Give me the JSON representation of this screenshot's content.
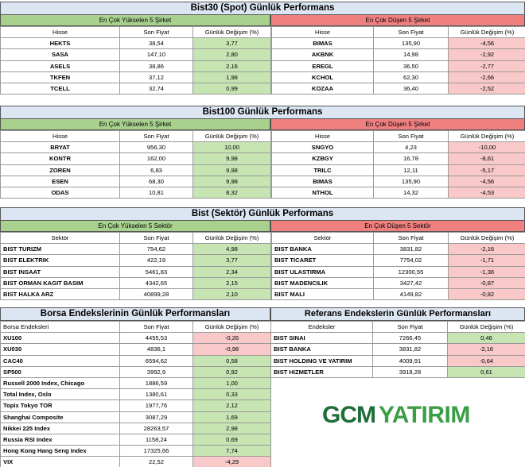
{
  "bist30": {
    "title": "Bist30 (Spot) Günlük Performans",
    "up_title": "En Çok Yükselen 5 Şirket",
    "down_title": "En Çok Düşen 5 Şirket",
    "headers": [
      "Hisse",
      "Son Fiyat",
      "Günlük Değişim (%)"
    ],
    "up": [
      [
        "HEKTS",
        "38,54",
        "3,77"
      ],
      [
        "SASA",
        "147,10",
        "2,80"
      ],
      [
        "ASELS",
        "38,86",
        "2,16"
      ],
      [
        "TKFEN",
        "37,12",
        "1,98"
      ],
      [
        "TCELL",
        "32,74",
        "0,99"
      ]
    ],
    "down": [
      [
        "BIMAS",
        "135,90",
        "-4,56"
      ],
      [
        "AKBNK",
        "14,98",
        "-2,92"
      ],
      [
        "EREGL",
        "36,50",
        "-2,77"
      ],
      [
        "KCHOL",
        "62,30",
        "-2,66"
      ],
      [
        "KOZAA",
        "36,40",
        "-2,52"
      ]
    ]
  },
  "bist100": {
    "title": "Bist100 Günlük Performans",
    "up_title": "En Çok Yükselen 5 Şirket",
    "down_title": "En Çok Düşen 5 Şirket",
    "headers": [
      "Hisse",
      "Son Fiyat",
      "Günlük Değişim (%)"
    ],
    "up": [
      [
        "BRYAT",
        "956,30",
        "10,00"
      ],
      [
        "KONTR",
        "162,00",
        "9,98"
      ],
      [
        "ZOREN",
        "6,83",
        "9,98"
      ],
      [
        "ESEN",
        "68,30",
        "9,98"
      ],
      [
        "ODAS",
        "10,81",
        "8,32"
      ]
    ],
    "down": [
      [
        "SNGYO",
        "4,23",
        "-10,00"
      ],
      [
        "KZBGY",
        "16,78",
        "-8,61"
      ],
      [
        "TRILC",
        "12,11",
        "-5,17"
      ],
      [
        "BIMAS",
        "135,90",
        "-4,56"
      ],
      [
        "NTHOL",
        "14,32",
        "-4,53"
      ]
    ]
  },
  "sektor": {
    "title": "Bist (Sektör) Günlük Performans",
    "up_title": "En Çok Yükselen 5 Sektör",
    "down_title": "En Çok Düşen 5 Sektör",
    "headers": [
      "Sektör",
      "Son Fiyat",
      "Günlük Değişim (%)"
    ],
    "up": [
      [
        "BIST TURIZM",
        "754,62",
        "4,98"
      ],
      [
        "BIST ELEKTRIK",
        "422,19",
        "3,77"
      ],
      [
        "BIST INSAAT",
        "5461,83",
        "2,34"
      ],
      [
        "BIST ORMAN KAGIT BASIM",
        "4342,65",
        "2,15"
      ],
      [
        "BIST HALKA ARZ",
        "40899,28",
        "2,10"
      ]
    ],
    "down": [
      [
        "BIST BANKA",
        "3831,82",
        "-2,16"
      ],
      [
        "BIST TICARET",
        "7754,02",
        "-1,71"
      ],
      [
        "BIST ULASTIRMA",
        "12300,55",
        "-1,36"
      ],
      [
        "BIST MADENCILIK",
        "3427,42",
        "-0,87"
      ],
      [
        "BIST MALI",
        "4149,82",
        "-0,82"
      ]
    ]
  },
  "borsa": {
    "title": "Borsa Endekslerinin Günlük Performansları",
    "headers": [
      "Borsa Endeksleri",
      "Son Fiyat",
      "Günlük Değişim (%)"
    ],
    "rows": [
      [
        "XU100",
        "4455,53",
        "-0,26"
      ],
      [
        "XU030",
        "4836,1",
        "-0,98"
      ],
      [
        "CAC40",
        "6594,62",
        "0,58"
      ],
      [
        "SP500",
        "3992,9",
        "0,92"
      ],
      [
        "Russell 2000 Index, Chicago",
        "1886,59",
        "1,00"
      ],
      [
        "Total Index, Oslo",
        "1380,61",
        "0,33"
      ],
      [
        "Topix Tokyo TOR",
        "1977,76",
        "2,12"
      ],
      [
        "Shanghai Composite",
        "3087,29",
        "1,69"
      ],
      [
        "Nikkei 225 Index",
        "28263,57",
        "2,98"
      ],
      [
        "Russia RSI Index",
        "1158,24",
        "0,69"
      ],
      [
        "Hong Kong Hang Seng Index",
        "17325,66",
        "7,74"
      ],
      [
        "VIX",
        "22,52",
        "-4,29"
      ]
    ]
  },
  "referans": {
    "title": "Referans Endekslerin  Günlük Performansları",
    "headers": [
      "Endeksler",
      "Son Fiyat",
      "Günlük Değişim (%)"
    ],
    "rows": [
      [
        "BIST SINAI",
        "7266,45",
        "0,46"
      ],
      [
        "BIST BANKA",
        "3831,82",
        "-2,16"
      ],
      [
        "BIST HOLDING VE YATIRIM",
        "4009,91",
        "-0,64"
      ],
      [
        "BIST HIZMETLER",
        "3918,28",
        "0,61"
      ]
    ]
  },
  "logo": {
    "part1": "GCM",
    "part2": "YATIRIM"
  },
  "colors": {
    "title_bg": "#dce6f2",
    "up_header": "#a9d18e",
    "down_header": "#f08080",
    "positive_cell": "#c6e5b3",
    "negative_cell": "#f9c8c8",
    "logo_dark": "#1f6e3a",
    "logo_light": "#3a9e46"
  }
}
